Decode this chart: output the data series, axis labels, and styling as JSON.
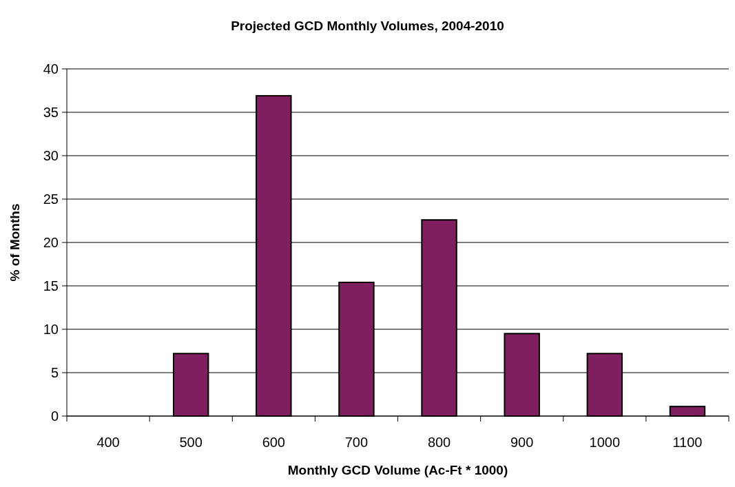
{
  "chart_data": {
    "type": "bar",
    "title": "Projected GCD Monthly Volumes, 2004-2010",
    "xlabel": "Monthly GCD Volume (Ac-Ft * 1000)",
    "ylabel": "% of Months",
    "categories": [
      "400",
      "500",
      "600",
      "700",
      "800",
      "900",
      "1000",
      "1100"
    ],
    "values": [
      0,
      7.2,
      36.9,
      15.4,
      22.6,
      9.5,
      7.2,
      1.1
    ],
    "color": "#7f1f5f",
    "ylim": [
      0,
      40
    ],
    "yticks": [
      0,
      5,
      10,
      15,
      20,
      25,
      30,
      35,
      40
    ],
    "grid": "y"
  }
}
